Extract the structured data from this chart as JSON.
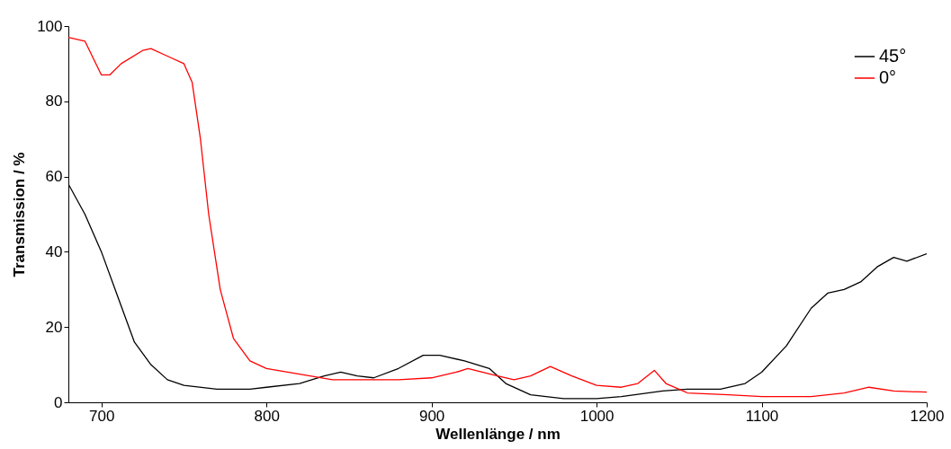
{
  "chart_data": {
    "type": "line",
    "xlabel": "Wellenlänge / nm",
    "ylabel": "Transmission / %",
    "xlim": [
      680,
      1200
    ],
    "xticks": [
      700,
      800,
      900,
      1000,
      1100,
      1200
    ],
    "ylim": [
      0,
      100
    ],
    "yticks": [
      0,
      20,
      40,
      60,
      80,
      100
    ],
    "grid": false,
    "legend": "top right",
    "series": [
      {
        "name": "45°",
        "color": "#000000",
        "x": [
          680,
          690,
          700,
          710,
          720,
          730,
          740,
          750,
          770,
          790,
          800,
          820,
          835,
          845,
          855,
          865,
          880,
          895,
          905,
          920,
          935,
          945,
          960,
          980,
          1000,
          1015,
          1040,
          1055,
          1075,
          1090,
          1100,
          1115,
          1130,
          1140,
          1150,
          1160,
          1170,
          1180,
          1188,
          1200
        ],
        "values": [
          58,
          50,
          40,
          28,
          16,
          10,
          6,
          4.5,
          3.5,
          3.5,
          4,
          5,
          7,
          8,
          7,
          6.5,
          9,
          12.5,
          12.5,
          11,
          9,
          5,
          2,
          1,
          1,
          1.5,
          3,
          3.5,
          3.5,
          5,
          8,
          15,
          25,
          29,
          30,
          32,
          36,
          38.5,
          37.5,
          39.5
        ]
      },
      {
        "name": "0°",
        "color": "#ff0000",
        "x": [
          680,
          690,
          700,
          705,
          712,
          725,
          730,
          740,
          750,
          755,
          760,
          765,
          772,
          780,
          790,
          800,
          820,
          840,
          880,
          900,
          915,
          922,
          940,
          950,
          960,
          972,
          985,
          1000,
          1015,
          1025,
          1035,
          1042,
          1055,
          1080,
          1100,
          1130,
          1150,
          1165,
          1180,
          1200
        ],
        "values": [
          97,
          96,
          87,
          87,
          90,
          93.5,
          94,
          92,
          90,
          85,
          70,
          50,
          30,
          17,
          11,
          9,
          7.5,
          6,
          6,
          6.5,
          8,
          9,
          7,
          6,
          7,
          9.5,
          7,
          4.5,
          4,
          5,
          8.5,
          5,
          2.5,
          2,
          1.5,
          1.5,
          2.5,
          4,
          3,
          2.7
        ]
      }
    ]
  }
}
